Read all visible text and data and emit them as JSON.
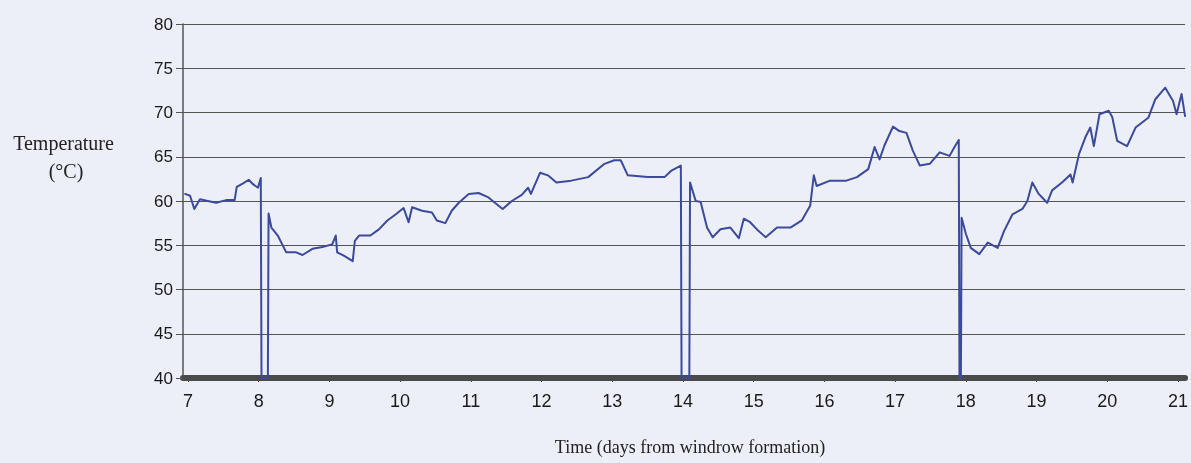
{
  "chart_data": {
    "type": "line",
    "xlabel": "Time (days from windrow formation)",
    "ylabel": "Temperature (°C)",
    "xlim": [
      6.93,
      21.1
    ],
    "xticks": [
      7,
      8,
      9,
      10,
      11,
      12,
      13,
      14,
      15,
      16,
      17,
      18,
      19,
      20,
      21
    ],
    "ylim": [
      40,
      80
    ],
    "yticks": [
      40,
      45,
      50,
      55,
      60,
      65,
      70,
      75,
      80
    ],
    "grid": "y",
    "x": [
      6.96,
      7.03,
      7.09,
      7.17,
      7.28,
      7.4,
      7.54,
      7.66,
      7.69,
      7.78,
      7.86,
      7.92,
      7.99,
      8.03,
      8.04,
      8.13,
      8.14,
      8.18,
      8.27,
      8.39,
      8.53,
      8.62,
      8.76,
      8.9,
      9.04,
      9.09,
      9.11,
      9.21,
      9.33,
      9.36,
      9.42,
      9.58,
      9.7,
      9.82,
      9.94,
      10.05,
      10.12,
      10.17,
      10.31,
      10.45,
      10.52,
      10.64,
      10.73,
      10.83,
      10.97,
      11.11,
      11.25,
      11.34,
      11.45,
      11.58,
      11.72,
      11.81,
      11.85,
      11.98,
      12.09,
      12.21,
      12.42,
      12.66,
      12.89,
      13.03,
      13.12,
      13.22,
      13.5,
      13.74,
      13.83,
      13.97,
      13.98,
      14.09,
      14.1,
      14.18,
      14.25,
      14.34,
      14.42,
      14.53,
      14.67,
      14.79,
      14.86,
      14.95,
      15.07,
      15.17,
      15.33,
      15.52,
      15.68,
      15.8,
      15.85,
      15.89,
      16.08,
      16.31,
      16.46,
      16.62,
      16.71,
      16.78,
      16.85,
      16.97,
      17.06,
      17.16,
      17.25,
      17.35,
      17.49,
      17.63,
      17.77,
      17.84,
      17.9,
      17.91,
      17.93,
      17.94,
      18.0,
      18.07,
      18.19,
      18.31,
      18.45,
      18.54,
      18.66,
      18.8,
      18.87,
      18.94,
      19.03,
      19.15,
      19.22,
      19.36,
      19.48,
      19.51,
      19.6,
      19.69,
      19.76,
      19.81,
      19.89,
      20.02,
      20.07,
      20.14,
      20.28,
      20.4,
      20.58,
      20.68,
      20.82,
      20.93,
      20.98,
      21.05,
      21.1
    ],
    "series": [
      {
        "color": "#3b4a9c",
        "values": [
          60.8,
          60.6,
          59.1,
          60.2,
          60.0,
          59.8,
          60.1,
          60.1,
          61.6,
          62.0,
          62.4,
          61.9,
          61.5,
          62.6,
          40,
          40,
          58.6,
          57.0,
          56.1,
          54.2,
          54.2,
          53.9,
          54.6,
          54.8,
          55.1,
          56.1,
          54.2,
          53.8,
          53.2,
          55.5,
          56.1,
          56.1,
          56.8,
          57.8,
          58.5,
          59.2,
          57.6,
          59.3,
          58.9,
          58.7,
          57.8,
          57.5,
          58.9,
          59.8,
          60.8,
          60.9,
          60.4,
          59.8,
          59.1,
          60.0,
          60.7,
          61.5,
          60.8,
          63.2,
          62.9,
          62.1,
          62.3,
          62.7,
          64.2,
          64.6,
          64.6,
          62.9,
          62.7,
          62.7,
          63.4,
          64.0,
          40,
          40,
          62.1,
          60.0,
          59.9,
          57.0,
          55.9,
          56.8,
          57.0,
          55.8,
          58.0,
          57.6,
          56.6,
          55.9,
          57.0,
          57.0,
          57.8,
          59.5,
          62.9,
          61.7,
          62.3,
          62.3,
          62.7,
          63.6,
          66.1,
          64.7,
          66.3,
          68.4,
          67.9,
          67.7,
          65.7,
          64.0,
          64.2,
          65.5,
          65.1,
          66.1,
          66.9,
          40,
          40,
          58.1,
          56.3,
          54.7,
          54.0,
          55.3,
          54.7,
          56.6,
          58.5,
          59.1,
          60.0,
          62.1,
          60.8,
          59.8,
          61.2,
          62.1,
          63.0,
          62.1,
          65.3,
          67.2,
          68.3,
          66.2,
          69.8,
          70.2,
          69.5,
          66.8,
          66.2,
          68.3,
          69.4,
          71.5,
          72.8,
          71.3,
          69.8,
          72.1,
          69.6
        ]
      }
    ]
  }
}
